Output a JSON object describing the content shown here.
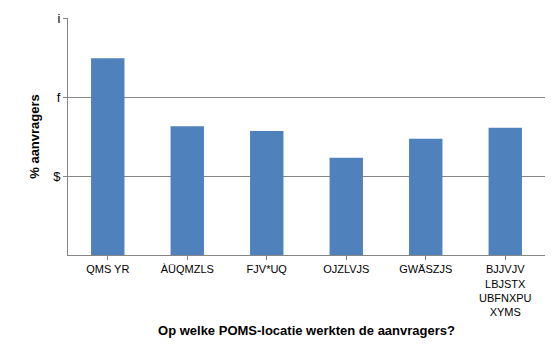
{
  "chart_data": {
    "type": "bar",
    "x_label": "Op welke POMS-locatie werkten de aanvragers?",
    "y_label": "% aanvragers",
    "categories": [
      "QMS YR",
      "ÀÜQMZLS",
      "FJV*UQ",
      "OJZLVJS",
      "GWÄSZJS",
      "BJJVJV\nLBJSTX\nUBFNXPU\nXYMS"
    ],
    "values": [
      24.9,
      16.3,
      15.7,
      12.3,
      14.7,
      16.1
    ],
    "color": "#4f81bd",
    "ylim": [
      0,
      30
    ],
    "yticks": [
      {
        "value": 10,
        "label": "$"
      },
      {
        "value": 20,
        "label": "f"
      },
      {
        "value": 30,
        "label": "i"
      }
    ],
    "grid": true
  }
}
